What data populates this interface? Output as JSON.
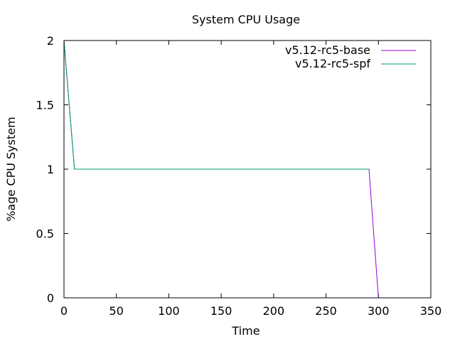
{
  "chart_data": {
    "type": "line",
    "title": "System CPU Usage",
    "xlabel": "Time",
    "ylabel": "%age CPU System",
    "xlim": [
      0,
      350
    ],
    "ylim": [
      0,
      2
    ],
    "x_ticks": [
      0,
      50,
      100,
      150,
      200,
      250,
      300,
      350
    ],
    "y_ticks": [
      0,
      0.5,
      1,
      1.5,
      2
    ],
    "grid": false,
    "legend_position": "top-right",
    "series": [
      {
        "name": "v5.12-rc5-base",
        "color": "#9400d3",
        "x": [
          0,
          10,
          291,
          300
        ],
        "y": [
          2,
          1,
          1,
          0
        ]
      },
      {
        "name": "v5.12-rc5-spf",
        "color": "#009e73",
        "x": [
          0,
          10,
          291
        ],
        "y": [
          2,
          1,
          1
        ]
      }
    ]
  }
}
